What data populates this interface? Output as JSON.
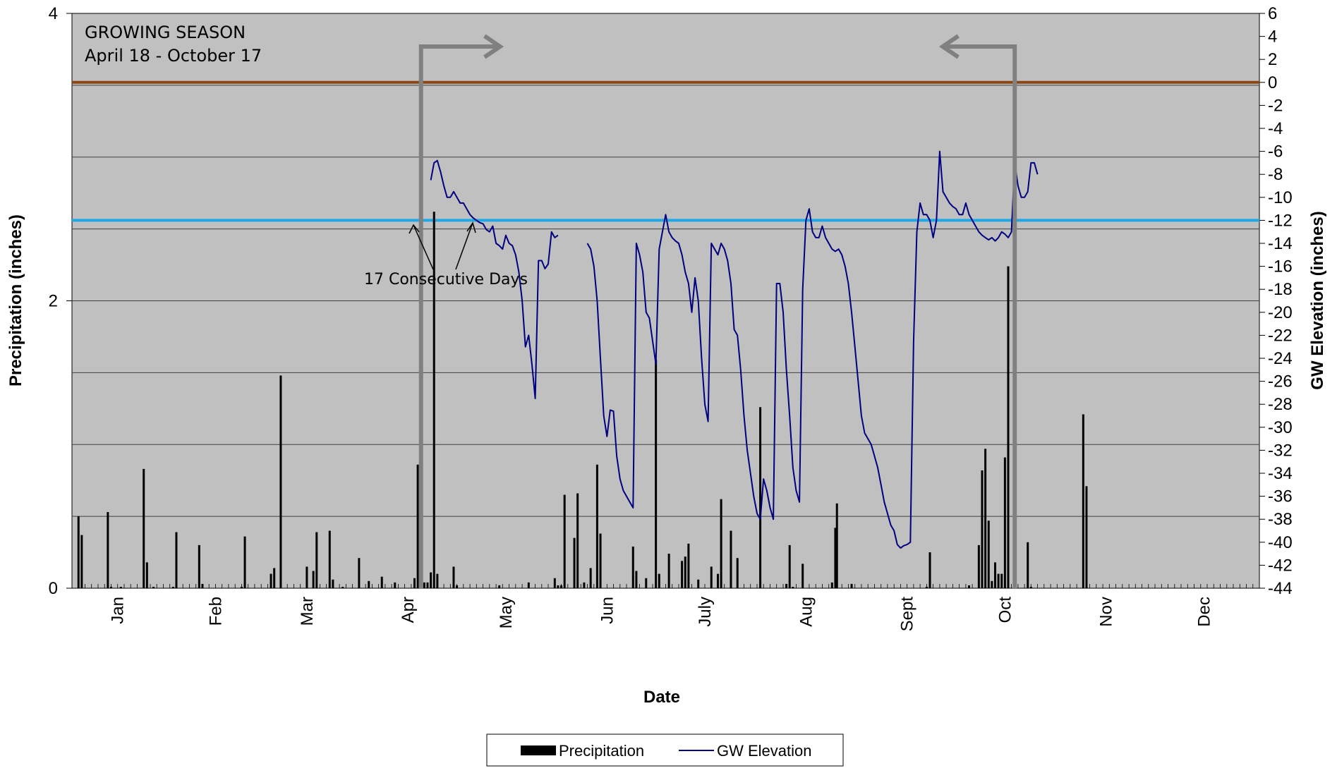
{
  "chart_data": {
    "type": "bar",
    "xlabel": "Date",
    "ylabel_left": "Precipitation (inches)",
    "ylabel_right": "GW Elevation (inches)",
    "left_axis": {
      "ylim": [
        0,
        4
      ],
      "ticks": [
        0,
        2,
        4
      ]
    },
    "right_axis": {
      "ylim": [
        -44,
        6
      ],
      "ticks": [
        6,
        4,
        2,
        0,
        -2,
        -4,
        -6,
        -8,
        -10,
        -12,
        -14,
        -16,
        -18,
        -20,
        -22,
        -24,
        -26,
        -28,
        -30,
        -32,
        -34,
        -36,
        -38,
        -40,
        -42,
        -44
      ]
    },
    "x_axis": {
      "day_range": [
        1,
        365
      ],
      "months": [
        "Jan",
        "Feb",
        "Mar",
        "Apr",
        "May",
        "Jun",
        "July",
        "Aug",
        "Sept",
        "Oct",
        "Nov",
        "Dec"
      ],
      "month_label_days": [
        15,
        45,
        73,
        104,
        134,
        165,
        195,
        226,
        257,
        287,
        318,
        348
      ]
    },
    "grid": {
      "horizontal": true,
      "gridline_precip_values": [
        0.5,
        1.0,
        1.5,
        2.0,
        2.5,
        3.0,
        3.5
      ]
    },
    "plot_background": "#c0c0c0",
    "colors": {
      "precipitation": "#000000",
      "gw_elevation": "#000080",
      "reference_zero": "#8b4513",
      "reference_minus12": "#1ca9e6",
      "growing_season_arrows": "#808080",
      "gridline": "#404040"
    },
    "legend": {
      "position": "bottom-center",
      "entries": [
        "Precipitation",
        "GW Elevation"
      ]
    },
    "annotations": {
      "growing_season_title": "GROWING SEASON",
      "growing_season_range": "April 18 - October 17",
      "consecutive_days": "17 Consecutive Days",
      "growing_season_start_day": 108,
      "growing_season_end_day": 290
    },
    "reference_lines": [
      {
        "gw": 0,
        "color": "#8b4513"
      },
      {
        "gw": -12,
        "color": "#1ca9e6"
      }
    ],
    "series": [
      {
        "name": "Precipitation",
        "axis": "left",
        "points": [
          [
            3,
            0.5
          ],
          [
            4,
            0.37
          ],
          [
            12,
            0.53
          ],
          [
            13,
            0.01
          ],
          [
            16,
            0.01
          ],
          [
            23,
            0.83
          ],
          [
            24,
            0.18
          ],
          [
            26,
            0.01
          ],
          [
            32,
            0.01
          ],
          [
            33,
            0.39
          ],
          [
            40,
            0.3
          ],
          [
            41,
            0.03
          ],
          [
            53,
            0.01
          ],
          [
            54,
            0.36
          ],
          [
            62,
            0.1
          ],
          [
            63,
            0.14
          ],
          [
            65,
            1.48
          ],
          [
            73,
            0.15
          ],
          [
            75,
            0.12
          ],
          [
            76,
            0.39
          ],
          [
            80,
            0.4
          ],
          [
            81,
            0.06
          ],
          [
            84,
            0.01
          ],
          [
            89,
            0.21
          ],
          [
            92,
            0.05
          ],
          [
            96,
            0.08
          ],
          [
            100,
            0.04
          ],
          [
            106,
            0.07
          ],
          [
            107,
            0.86
          ],
          [
            108,
            0.87
          ],
          [
            109,
            0.04
          ],
          [
            110,
            0.04
          ],
          [
            111,
            0.11
          ],
          [
            112,
            2.62
          ],
          [
            113,
            0.1
          ],
          [
            118,
            0.15
          ],
          [
            119,
            0.02
          ],
          [
            132,
            0.02
          ],
          [
            141,
            0.04
          ],
          [
            149,
            0.07
          ],
          [
            150,
            0.02
          ],
          [
            151,
            0.02
          ],
          [
            152,
            0.65
          ],
          [
            155,
            0.35
          ],
          [
            156,
            0.66
          ],
          [
            158,
            0.04
          ],
          [
            160,
            0.14
          ],
          [
            162,
            0.86
          ],
          [
            163,
            0.38
          ],
          [
            173,
            0.29
          ],
          [
            174,
            0.12
          ],
          [
            177,
            0.07
          ],
          [
            180,
            1.59
          ],
          [
            181,
            0.1
          ],
          [
            184,
            0.24
          ],
          [
            188,
            0.19
          ],
          [
            189,
            0.22
          ],
          [
            190,
            0.31
          ],
          [
            193,
            0.06
          ],
          [
            197,
            0.15
          ],
          [
            199,
            0.1
          ],
          [
            200,
            0.62
          ],
          [
            203,
            0.4
          ],
          [
            205,
            0.21
          ],
          [
            212,
            1.26
          ],
          [
            220,
            0.03
          ],
          [
            221,
            0.3
          ],
          [
            222,
            0.01
          ],
          [
            225,
            0.17
          ],
          [
            234,
            0.04
          ],
          [
            235,
            0.42
          ],
          [
            235.5,
            0.59
          ],
          [
            240,
            0.03
          ],
          [
            263,
            0.01
          ],
          [
            264,
            0.25
          ],
          [
            276,
            0.02
          ],
          [
            279,
            0.3
          ],
          [
            280,
            0.82
          ],
          [
            281,
            0.97
          ],
          [
            282,
            0.47
          ],
          [
            283,
            0.05
          ],
          [
            284,
            0.18
          ],
          [
            285,
            0.1
          ],
          [
            286,
            0.1
          ],
          [
            287,
            0.91
          ],
          [
            288,
            2.24
          ],
          [
            294,
            0.32
          ],
          [
            295,
            0.01
          ],
          [
            311,
            1.21
          ],
          [
            312,
            0.71
          ]
        ]
      },
      {
        "name": "GW Elevation",
        "axis": "right",
        "points": [
          [
            111,
            -8.5
          ],
          [
            112,
            -7
          ],
          [
            113,
            -6.8
          ],
          [
            114,
            -7.8
          ],
          [
            115,
            -9
          ],
          [
            116,
            -10
          ],
          [
            117,
            -10
          ],
          [
            118,
            -9.5
          ],
          [
            119,
            -10
          ],
          [
            120,
            -10.5
          ],
          [
            121,
            -10.5
          ],
          [
            122,
            -11
          ],
          [
            123,
            -11.5
          ],
          [
            124,
            -11.8
          ],
          [
            125,
            -12
          ],
          [
            126,
            -12.2
          ],
          [
            127,
            -12.3
          ],
          [
            128,
            -12.8
          ],
          [
            129,
            -13
          ],
          [
            130,
            -12.5
          ],
          [
            131,
            -14
          ],
          [
            132,
            -14.2
          ],
          [
            133,
            -14.5
          ],
          [
            134,
            -13.3
          ],
          [
            135,
            -14
          ],
          [
            136,
            -14.2
          ],
          [
            137,
            -15
          ],
          [
            138,
            -16.5
          ],
          [
            139,
            -19
          ],
          [
            140,
            -23
          ],
          [
            141,
            -22
          ],
          [
            142,
            -24.5
          ],
          [
            143,
            -27.5
          ],
          [
            144,
            -15.5
          ],
          [
            145,
            -15.5
          ],
          [
            146,
            -16.2
          ],
          [
            147,
            -15.8
          ],
          [
            148,
            -13
          ],
          [
            149,
            -13.5
          ],
          [
            150,
            -13.3
          ],
          [
            159,
            -14
          ],
          [
            160,
            -14.5
          ],
          [
            161,
            -16
          ],
          [
            162,
            -19
          ],
          [
            163,
            -24
          ],
          [
            164,
            -29
          ],
          [
            165,
            -30.8
          ],
          [
            166,
            -28.5
          ],
          [
            167,
            -28.6
          ],
          [
            168,
            -32.5
          ],
          [
            169,
            -34.5
          ],
          [
            170,
            -35.5
          ],
          [
            171,
            -36
          ],
          [
            172,
            -36.5
          ],
          [
            173,
            -37
          ],
          [
            174,
            -14
          ],
          [
            175,
            -15
          ],
          [
            176,
            -16.5
          ],
          [
            177,
            -20
          ],
          [
            178,
            -20.5
          ],
          [
            179,
            -22.5
          ],
          [
            180,
            -24.5
          ],
          [
            181,
            -14.5
          ],
          [
            182,
            -13
          ],
          [
            183,
            -11.5
          ],
          [
            184,
            -13
          ],
          [
            185,
            -13.5
          ],
          [
            186,
            -13.8
          ],
          [
            187,
            -14
          ],
          [
            188,
            -15
          ],
          [
            189,
            -16.5
          ],
          [
            190,
            -17.5
          ],
          [
            191,
            -20
          ],
          [
            192,
            -17
          ],
          [
            193,
            -19
          ],
          [
            194,
            -24
          ],
          [
            195,
            -28
          ],
          [
            196,
            -29.5
          ],
          [
            197,
            -14
          ],
          [
            198,
            -14.5
          ],
          [
            199,
            -15
          ],
          [
            200,
            -14
          ],
          [
            201,
            -14.5
          ],
          [
            202,
            -15.5
          ],
          [
            203,
            -17.5
          ],
          [
            204,
            -21.5
          ],
          [
            205,
            -22
          ],
          [
            206,
            -25
          ],
          [
            207,
            -29
          ],
          [
            208,
            -32
          ],
          [
            209,
            -34
          ],
          [
            210,
            -36
          ],
          [
            211,
            -37.5
          ],
          [
            212,
            -38
          ],
          [
            213,
            -34.5
          ],
          [
            214,
            -35.5
          ],
          [
            215,
            -37
          ],
          [
            216,
            -38
          ],
          [
            217,
            -17.5
          ],
          [
            218,
            -17.5
          ],
          [
            219,
            -20
          ],
          [
            220,
            -25
          ],
          [
            221,
            -29
          ],
          [
            222,
            -33.5
          ],
          [
            223,
            -35.5
          ],
          [
            224,
            -36.5
          ],
          [
            225,
            -18
          ],
          [
            226,
            -12
          ],
          [
            227,
            -11
          ],
          [
            228,
            -13
          ],
          [
            229,
            -13.5
          ],
          [
            230,
            -13.5
          ],
          [
            231,
            -12.5
          ],
          [
            232,
            -13.5
          ],
          [
            233,
            -14
          ],
          [
            234,
            -14.5
          ],
          [
            235,
            -14.7
          ],
          [
            236,
            -14.5
          ],
          [
            237,
            -15
          ],
          [
            238,
            -16
          ],
          [
            239,
            -17.5
          ],
          [
            240,
            -20
          ],
          [
            241,
            -23
          ],
          [
            242,
            -26
          ],
          [
            243,
            -29
          ],
          [
            244,
            -30.5
          ],
          [
            245,
            -31
          ],
          [
            246,
            -31.5
          ],
          [
            247,
            -32.5
          ],
          [
            248,
            -33.5
          ],
          [
            249,
            -35
          ],
          [
            250,
            -36.5
          ],
          [
            251,
            -37.5
          ],
          [
            252,
            -38.5
          ],
          [
            253,
            -39
          ],
          [
            254,
            -40.2
          ],
          [
            255,
            -40.5
          ],
          [
            256,
            -40.3
          ],
          [
            257,
            -40.2
          ],
          [
            258,
            -40
          ],
          [
            259,
            -22.5
          ],
          [
            260,
            -13
          ],
          [
            261,
            -10.5
          ],
          [
            262,
            -11.5
          ],
          [
            263,
            -11.5
          ],
          [
            264,
            -12
          ],
          [
            265,
            -13.5
          ],
          [
            266,
            -12
          ],
          [
            267,
            -6
          ],
          [
            268,
            -9.5
          ],
          [
            269,
            -10
          ],
          [
            270,
            -10.5
          ],
          [
            271,
            -10.8
          ],
          [
            272,
            -11
          ],
          [
            273,
            -11.5
          ],
          [
            274,
            -11.5
          ],
          [
            275,
            -10.5
          ],
          [
            276,
            -11.5
          ],
          [
            277,
            -12
          ],
          [
            278,
            -12.5
          ],
          [
            279,
            -13
          ],
          [
            280,
            -13.3
          ],
          [
            281,
            -13.5
          ],
          [
            282,
            -13.7
          ],
          [
            283,
            -13.5
          ],
          [
            284,
            -13.8
          ],
          [
            285,
            -13.5
          ],
          [
            286,
            -13
          ],
          [
            287,
            -13.2
          ],
          [
            288,
            -13.5
          ],
          [
            289,
            -13
          ],
          [
            290,
            -7
          ],
          [
            291,
            -9
          ],
          [
            292,
            -10
          ],
          [
            293,
            -10
          ],
          [
            294,
            -9.5
          ],
          [
            295,
            -7
          ],
          [
            296,
            -7
          ],
          [
            297,
            -8
          ]
        ]
      }
    ]
  }
}
